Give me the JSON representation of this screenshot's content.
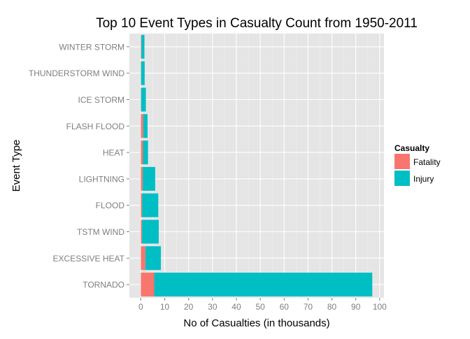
{
  "chart_data": {
    "type": "bar",
    "orientation": "horizontal",
    "stacked": true,
    "title": "Top 10 Event Types in Casualty Count from 1950-2011",
    "xlabel": "No of Casualties (in thousands)",
    "ylabel": "Event Type",
    "xlim": [
      -4.8,
      101.8
    ],
    "x_ticks": [
      0,
      10,
      20,
      30,
      40,
      50,
      60,
      70,
      80,
      90,
      100
    ],
    "x_tick_labels": [
      "0",
      "10",
      "20",
      "30",
      "40",
      "50",
      "60",
      "70",
      "80",
      "90",
      "100"
    ],
    "categories": [
      "WINTER STORM",
      "THUNDERSTORM WIND",
      "ICE STORM",
      "FLASH FLOOD",
      "HEAT",
      "LIGHTNING",
      "FLOOD",
      "TSTM WIND",
      "EXCESSIVE HEAT",
      "TORNADO"
    ],
    "series": [
      {
        "name": "Fatality",
        "color": "#F8766D",
        "values": [
          0.2,
          0.1,
          0.1,
          1.0,
          0.9,
          0.8,
          0.5,
          0.5,
          1.9,
          5.6
        ]
      },
      {
        "name": "Injury",
        "color": "#00BFC4",
        "values": [
          1.3,
          1.5,
          2.0,
          1.8,
          2.1,
          5.2,
          6.8,
          7.0,
          6.5,
          91.3
        ]
      }
    ],
    "grid": true,
    "legend": {
      "title": "Casualty",
      "position": "right"
    }
  }
}
